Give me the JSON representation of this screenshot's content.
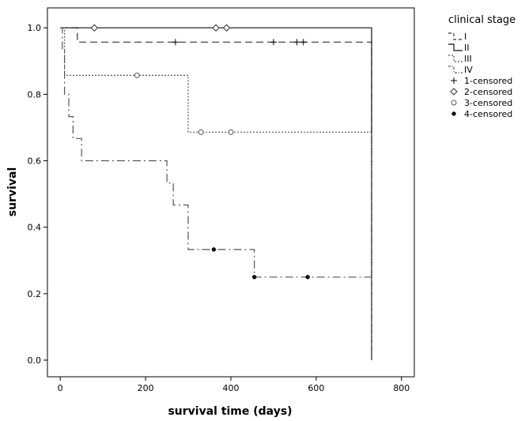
{
  "chart_data": {
    "type": "line",
    "subtype": "kaplan-meier step",
    "xlabel": "survival time (days)",
    "ylabel": "survival",
    "xlim": [
      -30,
      830
    ],
    "ylim": [
      -0.05,
      1.06
    ],
    "xticks": [
      0,
      200,
      400,
      600,
      800
    ],
    "xtick_labels": [
      "0",
      "200",
      "400",
      "600",
      "800"
    ],
    "yticks": [
      0.0,
      0.2,
      0.4,
      0.6,
      0.8,
      1.0
    ],
    "ytick_labels": [
      "0.0",
      "0.2",
      "0.4",
      "0.6",
      "0.8",
      "1.0"
    ],
    "grid": false,
    "legend": {
      "title": "clinical stage",
      "placement": "right-outside",
      "entries": [
        "I",
        "II",
        "III",
        "IV",
        "1-censored",
        "2-censored",
        "3-censored",
        "4-censored"
      ]
    },
    "series": [
      {
        "name": "I",
        "line_style": "dashed",
        "color": "#333333",
        "steps": [
          [
            0,
            1.0
          ],
          [
            40,
            0.957
          ],
          [
            730,
            0.957
          ],
          [
            730,
            0.0
          ]
        ],
        "censored_x": [
          270,
          500,
          555,
          570
        ]
      },
      {
        "name": "II",
        "line_style": "solid",
        "color": "#111111",
        "steps": [
          [
            0,
            1.0
          ],
          [
            730,
            1.0
          ],
          [
            730,
            0.0
          ]
        ],
        "censored_x": [
          80,
          365,
          390
        ]
      },
      {
        "name": "III",
        "line_style": "dotted",
        "color": "#555555",
        "steps": [
          [
            0,
            1.0
          ],
          [
            10,
            0.857
          ],
          [
            300,
            0.686
          ],
          [
            730,
            0.686
          ],
          [
            730,
            0.0
          ]
        ],
        "censored_x": [
          180,
          330,
          400
        ]
      },
      {
        "name": "IV",
        "line_style": "dash-dot",
        "color": "#555555",
        "steps": [
          [
            0,
            1.0
          ],
          [
            5,
            0.933
          ],
          [
            10,
            0.8
          ],
          [
            20,
            0.733
          ],
          [
            30,
            0.667
          ],
          [
            50,
            0.6
          ],
          [
            250,
            0.533
          ],
          [
            265,
            0.467
          ],
          [
            300,
            0.333
          ],
          [
            455,
            0.25
          ],
          [
            730,
            0.25
          ],
          [
            730,
            0.0
          ]
        ],
        "censored_x": [
          360,
          455,
          580
        ]
      }
    ]
  }
}
